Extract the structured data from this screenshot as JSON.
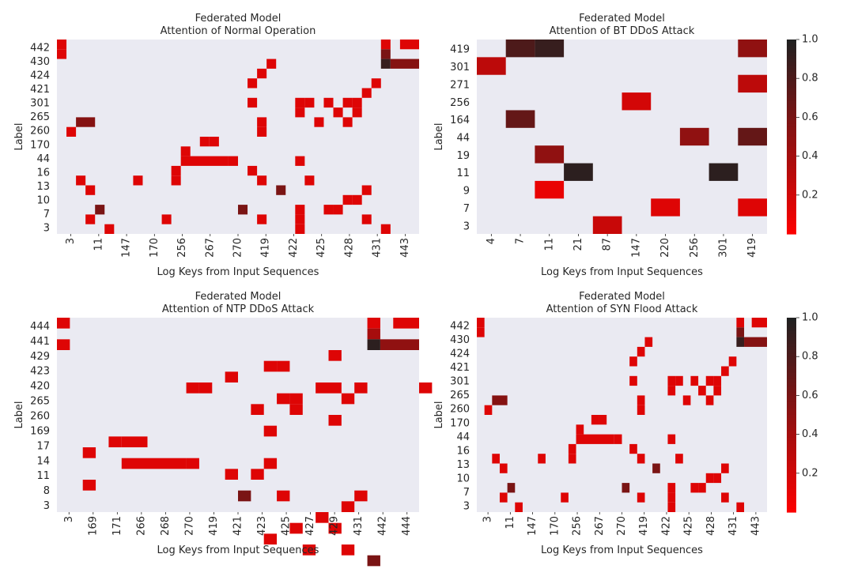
{
  "figure_title": "",
  "colors": {
    "panel_bg": "#EAEAF2",
    "scale_low": "#FF0000",
    "scale_high": "#212121"
  },
  "colorbar": {
    "min": 0,
    "max": 1,
    "ticks": [
      "0.2",
      "0.4",
      "0.6",
      "0.8",
      "1.0"
    ],
    "tick_values": [
      0.2,
      0.4,
      0.6,
      0.8,
      1.0
    ]
  },
  "chart_data": [
    {
      "type": "heatmap",
      "title": "Federated Model",
      "subtitle": "Attention of Normal Operation",
      "xlabel": "Log Keys from Input Sequences",
      "ylabel": "Label",
      "x_categories": [
        "3",
        "11",
        "147",
        "170",
        "256",
        "267",
        "270",
        "419",
        "422",
        "425",
        "428",
        "431",
        "443"
      ],
      "y_categories": [
        "442",
        "430",
        "424",
        "421",
        "301",
        "265",
        "260",
        "170",
        "44",
        "16",
        "13",
        "10",
        "7",
        "3"
      ],
      "n_cols": 38,
      "n_rows": 20,
      "cells": [
        [
          0,
          0,
          1,
          0.15
        ],
        [
          0,
          1,
          1,
          0.15
        ],
        [
          34,
          0,
          1,
          0.15
        ],
        [
          36,
          0,
          2,
          0.15
        ],
        [
          34,
          1,
          1,
          0.6
        ],
        [
          34,
          2,
          1,
          0.9
        ],
        [
          35,
          2,
          3,
          0.55
        ],
        [
          22,
          2,
          1,
          0.15
        ],
        [
          21,
          3,
          1,
          0.15
        ],
        [
          20,
          4,
          1,
          0.15
        ],
        [
          33,
          4,
          1,
          0.15
        ],
        [
          32,
          5,
          1,
          0.15
        ],
        [
          20,
          6,
          1,
          0.15
        ],
        [
          25,
          6,
          1,
          0.15
        ],
        [
          26,
          6,
          1,
          0.15
        ],
        [
          28,
          6,
          1,
          0.15
        ],
        [
          31,
          6,
          1,
          0.15
        ],
        [
          30,
          6,
          1,
          0.15
        ],
        [
          25,
          7,
          1,
          0.15
        ],
        [
          31,
          7,
          1,
          0.15
        ],
        [
          29,
          7,
          1,
          0.15
        ],
        [
          2,
          8,
          2,
          0.55
        ],
        [
          21,
          8,
          1,
          0.15
        ],
        [
          27,
          8,
          1,
          0.15
        ],
        [
          30,
          8,
          1,
          0.15
        ],
        [
          1,
          9,
          1,
          0.15
        ],
        [
          21,
          9,
          1,
          0.15
        ],
        [
          16,
          10,
          1,
          0.15
        ],
        [
          15,
          10,
          1,
          0.15
        ],
        [
          13,
          11,
          1,
          0.15
        ],
        [
          13,
          12,
          5,
          0.15
        ],
        [
          18,
          12,
          1,
          0.15
        ],
        [
          25,
          12,
          1,
          0.15
        ],
        [
          12,
          13,
          1,
          0.15
        ],
        [
          20,
          13,
          1,
          0.15
        ],
        [
          2,
          14,
          1,
          0.15
        ],
        [
          8,
          14,
          1,
          0.15
        ],
        [
          12,
          14,
          1,
          0.15
        ],
        [
          21,
          14,
          1,
          0.15
        ],
        [
          26,
          14,
          1,
          0.15
        ],
        [
          3,
          15,
          1,
          0.15
        ],
        [
          23,
          15,
          1,
          0.6
        ],
        [
          32,
          15,
          1,
          0.15
        ],
        [
          31,
          16,
          1,
          0.15
        ],
        [
          30,
          16,
          1,
          0.15
        ],
        [
          4,
          17,
          1,
          0.6
        ],
        [
          19,
          17,
          1,
          0.6
        ],
        [
          25,
          17,
          1,
          0.15
        ],
        [
          28,
          17,
          1,
          0.15
        ],
        [
          29,
          17,
          1,
          0.15
        ],
        [
          3,
          18,
          1,
          0.15
        ],
        [
          11,
          18,
          1,
          0.15
        ],
        [
          21,
          18,
          1,
          0.15
        ],
        [
          25,
          18,
          1,
          0.15
        ],
        [
          32,
          18,
          1,
          0.15
        ],
        [
          5,
          19,
          1,
          0.15
        ],
        [
          25,
          19,
          1,
          0.15
        ],
        [
          34,
          19,
          1,
          0.15
        ]
      ]
    },
    {
      "type": "heatmap",
      "title": "Federated Model",
      "subtitle": "Attention of BT DDoS Attack",
      "xlabel": "Log Keys from Input Sequences",
      "ylabel": "Label",
      "x_categories": [
        "4",
        "7",
        "11",
        "21",
        "87",
        "147",
        "220",
        "256",
        "301",
        "419"
      ],
      "y_categories": [
        "419",
        "301",
        "271",
        "256",
        "164",
        "44",
        "19",
        "11",
        "9",
        "7",
        "3"
      ],
      "n_cols": 10,
      "n_rows": 11,
      "cells": [
        [
          1,
          0,
          1,
          0.8
        ],
        [
          2,
          0,
          1,
          0.9
        ],
        [
          9,
          0,
          1,
          0.5
        ],
        [
          0,
          1,
          1,
          0.3
        ],
        [
          9,
          2,
          1,
          0.3
        ],
        [
          5,
          3,
          1,
          0.2
        ],
        [
          1,
          4,
          1,
          0.7
        ],
        [
          7,
          5,
          1,
          0.5
        ],
        [
          9,
          5,
          1,
          0.7
        ],
        [
          2,
          6,
          1,
          0.5
        ],
        [
          3,
          7,
          1,
          0.95
        ],
        [
          8,
          7,
          1,
          0.95
        ],
        [
          2,
          8,
          1,
          0.1
        ],
        [
          6,
          9,
          1,
          0.15
        ],
        [
          9,
          9,
          1,
          0.15
        ],
        [
          4,
          10,
          1,
          0.25
        ]
      ]
    },
    {
      "type": "heatmap",
      "title": "Federated Model",
      "subtitle": "Attention of NTP DDoS Attack",
      "xlabel": "Log Keys from Input Sequences",
      "ylabel": "Label",
      "x_categories": [
        "3",
        "169",
        "171",
        "266",
        "268",
        "270",
        "419",
        "421",
        "423",
        "425",
        "427",
        "429",
        "431",
        "442",
        "444"
      ],
      "y_categories": [
        "444",
        "441",
        "429",
        "423",
        "420",
        "265",
        "260",
        "169",
        "17",
        "14",
        "11",
        "8",
        "3"
      ],
      "n_cols": 28,
      "n_rows": 18,
      "cells": [
        [
          0,
          0,
          1,
          0.15
        ],
        [
          24,
          0,
          1,
          0.15
        ],
        [
          26,
          0,
          2,
          0.15
        ],
        [
          24,
          1,
          1,
          0.4
        ],
        [
          0,
          2,
          1,
          0.15
        ],
        [
          24,
          2,
          1,
          0.95
        ],
        [
          25,
          2,
          3,
          0.5
        ],
        [
          21,
          3,
          1,
          0.15
        ],
        [
          17,
          4,
          1,
          0.15
        ],
        [
          16,
          4,
          1,
          0.15
        ],
        [
          13,
          5,
          1,
          0.15
        ],
        [
          11,
          6,
          1,
          0.15
        ],
        [
          10,
          6,
          1,
          0.15
        ],
        [
          20,
          6,
          1,
          0.15
        ],
        [
          21,
          6,
          1,
          0.15
        ],
        [
          23,
          6,
          1,
          0.15
        ],
        [
          28,
          6,
          1,
          0.15
        ],
        [
          17,
          7,
          1,
          0.15
        ],
        [
          18,
          7,
          1,
          0.15
        ],
        [
          22,
          7,
          1,
          0.15
        ],
        [
          18,
          8,
          1,
          0.15
        ],
        [
          15,
          8,
          1,
          0.15
        ],
        [
          21,
          9,
          1,
          0.15
        ],
        [
          16,
          10,
          1,
          0.15
        ],
        [
          5,
          11,
          2,
          0.15
        ],
        [
          2,
          12,
          1,
          0.15
        ],
        [
          4,
          11,
          1,
          0.15
        ],
        [
          5,
          13,
          5,
          0.15
        ],
        [
          10,
          13,
          1,
          0.15
        ],
        [
          16,
          13,
          1,
          0.15
        ],
        [
          15,
          14,
          1,
          0.15
        ],
        [
          13,
          14,
          1,
          0.15
        ],
        [
          2,
          15,
          1,
          0.15
        ],
        [
          14,
          16,
          1,
          0.6
        ],
        [
          17,
          16,
          1,
          0.15
        ],
        [
          22,
          17,
          1,
          0.15
        ],
        [
          23,
          16,
          1,
          0.15
        ],
        [
          20,
          18,
          1,
          0.15
        ],
        [
          18,
          19,
          1,
          0.15
        ],
        [
          21,
          19,
          1,
          0.15
        ],
        [
          16,
          20,
          1,
          0.15
        ],
        [
          19,
          21,
          1,
          0.15
        ],
        [
          22,
          21,
          1,
          0.15
        ],
        [
          24,
          22,
          1,
          0.6
        ]
      ]
    },
    {
      "type": "heatmap",
      "title": "Federated Model",
      "subtitle": "Attention of SYN Flood Attack",
      "xlabel": "Log Keys from Input Sequences",
      "ylabel": "Label",
      "x_categories": [
        "3",
        "11",
        "147",
        "170",
        "256",
        "267",
        "270",
        "419",
        "422",
        "425",
        "428",
        "431",
        "443"
      ],
      "y_categories": [
        "442",
        "430",
        "424",
        "421",
        "301",
        "265",
        "260",
        "170",
        "44",
        "16",
        "13",
        "10",
        "7",
        "3"
      ],
      "n_cols": 38,
      "n_rows": 20,
      "cells": [
        [
          0,
          0,
          1,
          0.15
        ],
        [
          0,
          1,
          1,
          0.15
        ],
        [
          34,
          0,
          1,
          0.15
        ],
        [
          36,
          0,
          2,
          0.15
        ],
        [
          34,
          1,
          1,
          0.6
        ],
        [
          34,
          2,
          1,
          0.9
        ],
        [
          35,
          2,
          3,
          0.55
        ],
        [
          22,
          2,
          1,
          0.15
        ],
        [
          21,
          3,
          1,
          0.15
        ],
        [
          20,
          4,
          1,
          0.15
        ],
        [
          33,
          4,
          1,
          0.15
        ],
        [
          32,
          5,
          1,
          0.15
        ],
        [
          20,
          6,
          1,
          0.15
        ],
        [
          25,
          6,
          1,
          0.15
        ],
        [
          26,
          6,
          1,
          0.15
        ],
        [
          28,
          6,
          1,
          0.15
        ],
        [
          31,
          6,
          1,
          0.15
        ],
        [
          30,
          6,
          1,
          0.15
        ],
        [
          25,
          7,
          1,
          0.15
        ],
        [
          31,
          7,
          1,
          0.15
        ],
        [
          29,
          7,
          1,
          0.15
        ],
        [
          2,
          8,
          2,
          0.55
        ],
        [
          21,
          8,
          1,
          0.15
        ],
        [
          27,
          8,
          1,
          0.15
        ],
        [
          30,
          8,
          1,
          0.15
        ],
        [
          1,
          9,
          1,
          0.15
        ],
        [
          21,
          9,
          1,
          0.15
        ],
        [
          16,
          10,
          1,
          0.15
        ],
        [
          15,
          10,
          1,
          0.15
        ],
        [
          13,
          11,
          1,
          0.15
        ],
        [
          13,
          12,
          5,
          0.15
        ],
        [
          18,
          12,
          1,
          0.15
        ],
        [
          25,
          12,
          1,
          0.15
        ],
        [
          12,
          13,
          1,
          0.15
        ],
        [
          20,
          13,
          1,
          0.15
        ],
        [
          2,
          14,
          1,
          0.15
        ],
        [
          8,
          14,
          1,
          0.15
        ],
        [
          12,
          14,
          1,
          0.15
        ],
        [
          21,
          14,
          1,
          0.15
        ],
        [
          26,
          14,
          1,
          0.15
        ],
        [
          3,
          15,
          1,
          0.15
        ],
        [
          23,
          15,
          1,
          0.6
        ],
        [
          32,
          15,
          1,
          0.15
        ],
        [
          31,
          16,
          1,
          0.15
        ],
        [
          30,
          16,
          1,
          0.15
        ],
        [
          4,
          17,
          1,
          0.6
        ],
        [
          19,
          17,
          1,
          0.6
        ],
        [
          25,
          17,
          1,
          0.15
        ],
        [
          28,
          17,
          1,
          0.15
        ],
        [
          29,
          17,
          1,
          0.15
        ],
        [
          3,
          18,
          1,
          0.15
        ],
        [
          11,
          18,
          1,
          0.15
        ],
        [
          21,
          18,
          1,
          0.15
        ],
        [
          25,
          18,
          1,
          0.15
        ],
        [
          32,
          18,
          1,
          0.15
        ],
        [
          5,
          19,
          1,
          0.15
        ],
        [
          25,
          19,
          1,
          0.15
        ],
        [
          34,
          19,
          1,
          0.15
        ]
      ]
    }
  ]
}
